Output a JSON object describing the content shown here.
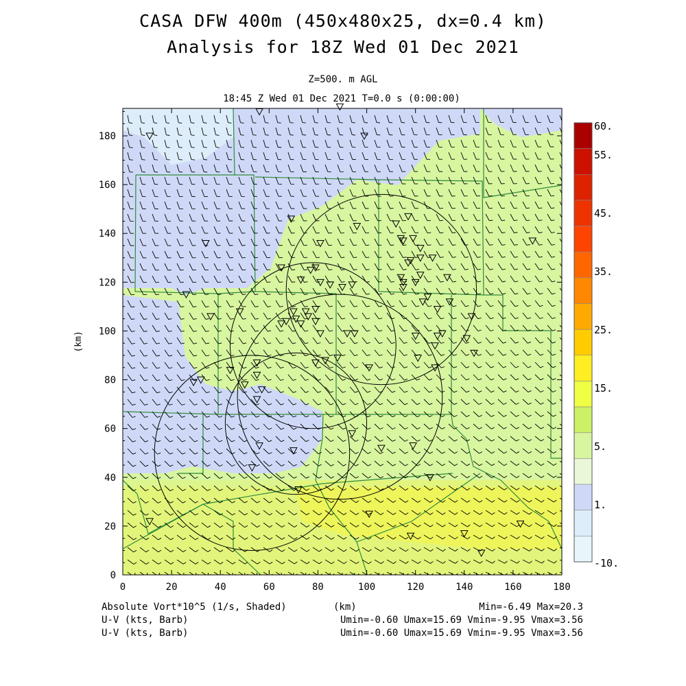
{
  "header": {
    "title_line1": "CASA DFW 400m (450x480x25, dx=0.4 km)",
    "title_line2": "Analysis for 18Z Wed 01 Dec 2021",
    "level": "Z=500. m AGL",
    "time": "18:45 Z Wed 01 Dec 2021    T=0.0 s (0:00:00)"
  },
  "axes": {
    "x_label": "(km)",
    "y_label": "(km)",
    "x_ticks": [
      "0",
      "20",
      "40",
      "60",
      "80",
      "100",
      "120",
      "140",
      "160",
      "180"
    ],
    "y_ticks": [
      "0",
      "20",
      "40",
      "60",
      "80",
      "100",
      "120",
      "140",
      "160",
      "180"
    ],
    "x_range": [
      0,
      180
    ],
    "y_range": [
      0,
      192
    ]
  },
  "colorbar": {
    "labels": [
      "60.",
      "55.",
      "45.",
      "35.",
      "25.",
      "15.",
      "5.",
      "1.",
      "-10."
    ],
    "colors": [
      "#aa0000",
      "#cc1100",
      "#dd2200",
      "#ee3300",
      "#ff4400",
      "#ff6600",
      "#ff8800",
      "#ffaa00",
      "#ffcc00",
      "#ffee22",
      "#eeff44",
      "#ccf066",
      "#d8f5a0",
      "#eaf8d8",
      "#cfd9f7",
      "#ddeefa",
      "#e8f6fc"
    ]
  },
  "footer": {
    "field1": "Absolute Vort*10^5 (1/s, Shaded)",
    "field2": "U-V (kts, Barb)",
    "field3": "U-V (kts, Barb)",
    "xunit": "(km)",
    "minmax": "Min=-6.49 Max=20.3",
    "uv_stats1": "Umin=-0.60 Umax=15.69 Vmin=-9.95 Vmax=3.56",
    "uv_stats2": "Umin=-0.60 Umax=15.69 Vmin=-9.95 Vmax=3.56"
  },
  "map_data": {
    "radar_rings_km": [
      {
        "cx": 106,
        "cy": 117,
        "r": 39
      },
      {
        "cx": 78,
        "cy": 94,
        "r": 34
      },
      {
        "cx": 89,
        "cy": 73,
        "r": 42
      },
      {
        "cx": 53,
        "cy": 50,
        "r": 40
      },
      {
        "cx": 71,
        "cy": 62,
        "r": 29
      }
    ],
    "stations_km": [
      [
        11,
        180
      ],
      [
        56,
        190
      ],
      [
        89,
        192
      ],
      [
        99,
        180
      ],
      [
        34,
        136
      ],
      [
        69,
        146
      ],
      [
        65,
        126
      ],
      [
        79,
        126
      ],
      [
        81,
        136
      ],
      [
        96,
        143
      ],
      [
        112,
        144
      ],
      [
        117,
        147
      ],
      [
        114,
        138
      ],
      [
        115,
        137
      ],
      [
        119,
        138
      ],
      [
        122,
        134
      ],
      [
        122,
        130
      ],
      [
        127,
        130
      ],
      [
        117,
        128
      ],
      [
        118,
        129
      ],
      [
        122,
        123
      ],
      [
        120,
        120
      ],
      [
        115,
        120
      ],
      [
        114,
        122
      ],
      [
        133,
        122
      ],
      [
        115,
        118
      ],
      [
        125,
        114
      ],
      [
        123,
        112
      ],
      [
        129,
        109
      ],
      [
        134,
        112
      ],
      [
        81,
        120
      ],
      [
        85,
        119
      ],
      [
        90,
        118
      ],
      [
        94,
        119
      ],
      [
        77,
        125
      ],
      [
        73,
        121
      ],
      [
        75,
        108
      ],
      [
        76,
        106
      ],
      [
        79,
        104
      ],
      [
        71,
        105
      ],
      [
        79,
        109
      ],
      [
        65,
        103
      ],
      [
        67,
        104
      ],
      [
        70,
        108
      ],
      [
        73,
        103
      ],
      [
        48,
        108
      ],
      [
        36,
        106
      ],
      [
        26,
        115
      ],
      [
        81,
        99
      ],
      [
        92,
        99
      ],
      [
        95,
        99
      ],
      [
        120,
        98
      ],
      [
        129,
        98
      ],
      [
        128,
        94
      ],
      [
        131,
        99
      ],
      [
        141,
        97
      ],
      [
        143,
        106
      ],
      [
        144,
        91
      ],
      [
        121,
        89
      ],
      [
        128,
        85
      ],
      [
        79,
        87
      ],
      [
        83,
        88
      ],
      [
        88,
        89
      ],
      [
        101,
        85
      ],
      [
        44,
        84
      ],
      [
        55,
        87
      ],
      [
        55,
        82
      ],
      [
        32,
        80
      ],
      [
        29,
        79
      ],
      [
        50,
        78
      ],
      [
        57,
        76
      ],
      [
        55,
        72
      ],
      [
        56,
        53
      ],
      [
        70,
        51
      ],
      [
        53,
        44
      ],
      [
        72,
        35
      ],
      [
        94,
        58
      ],
      [
        106,
        52
      ],
      [
        119,
        53
      ],
      [
        126,
        40
      ],
      [
        101,
        25
      ],
      [
        118,
        16
      ],
      [
        140,
        17
      ],
      [
        11,
        22
      ],
      [
        163,
        21
      ],
      [
        147,
        9
      ],
      [
        168,
        137
      ]
    ]
  }
}
